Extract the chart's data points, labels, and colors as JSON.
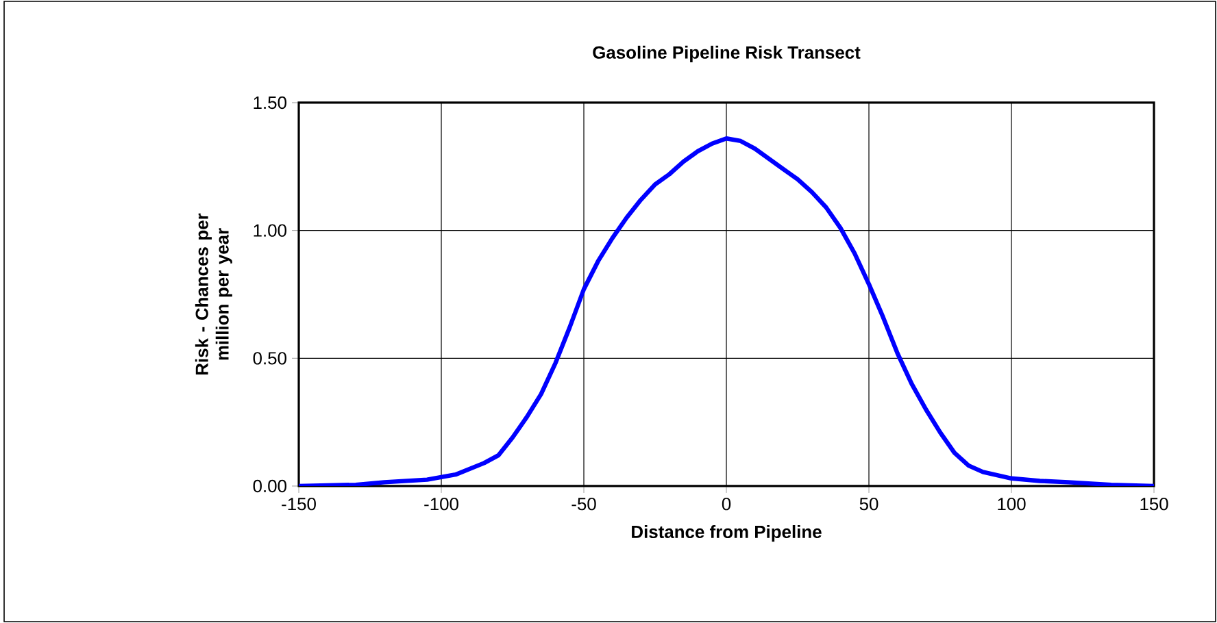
{
  "chart_data": {
    "type": "line",
    "title": "Gasoline Pipeline Risk Transect",
    "xlabel": "Distance from Pipeline",
    "ylabel": "Risk - Chances per million per year",
    "xlim": [
      -150,
      150
    ],
    "xticks": [
      -150,
      -100,
      -50,
      0,
      50,
      100,
      150
    ],
    "ylim": [
      0,
      1.5
    ],
    "yticks": [
      {
        "value": 0,
        "label": "0.00"
      },
      {
        "value": 0.5,
        "label": "0.50"
      },
      {
        "value": 1.0,
        "label": "1.00"
      },
      {
        "value": 1.5,
        "label": "1.50"
      }
    ],
    "grid": true,
    "marker": "none",
    "line_style": "solid",
    "series": [
      {
        "color": "#0000ff",
        "x": [
          -150,
          -130,
          -120,
          -105,
          -95,
          -85,
          -80,
          -75,
          -70,
          -65,
          -60,
          -55,
          -50,
          -45,
          -40,
          -35,
          -30,
          -25,
          -20,
          -15,
          -10,
          -5,
          0,
          5,
          10,
          15,
          20,
          25,
          30,
          35,
          40,
          45,
          50,
          55,
          60,
          65,
          70,
          75,
          80,
          85,
          90,
          100,
          110,
          120,
          135,
          150
        ],
        "values": [
          0,
          0.005,
          0.015,
          0.025,
          0.045,
          0.09,
          0.12,
          0.19,
          0.27,
          0.36,
          0.48,
          0.62,
          0.77,
          0.88,
          0.97,
          1.05,
          1.12,
          1.18,
          1.22,
          1.27,
          1.31,
          1.34,
          1.36,
          1.35,
          1.32,
          1.28,
          1.24,
          1.2,
          1.15,
          1.09,
          1.01,
          0.91,
          0.79,
          0.66,
          0.52,
          0.4,
          0.3,
          0.21,
          0.13,
          0.08,
          0.055,
          0.03,
          0.02,
          0.015,
          0.005,
          0
        ]
      }
    ]
  }
}
